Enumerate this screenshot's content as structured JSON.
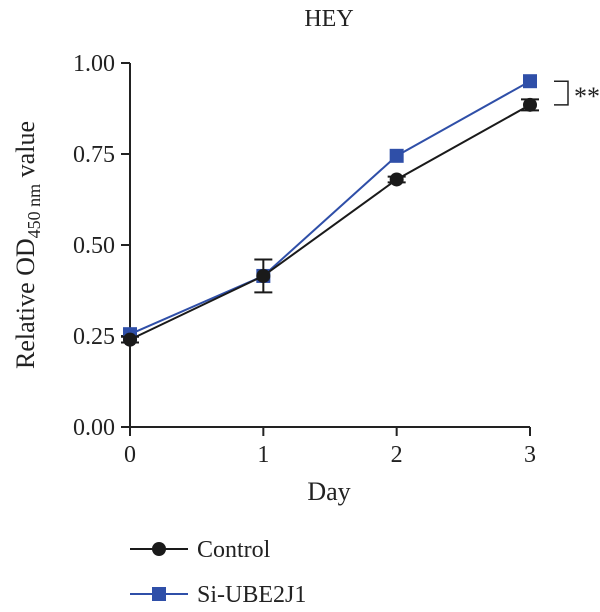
{
  "chart_data": {
    "type": "line",
    "title": "HEY",
    "xlabel": "Day",
    "ylabel": {
      "main": "Relative OD",
      "subscript": "450 nm",
      "suffix": " value"
    },
    "x": [
      0,
      1,
      2,
      3
    ],
    "x_ticks": [
      "0",
      "1",
      "2",
      "3"
    ],
    "y_ticks": [
      "0.00",
      "0.25",
      "0.50",
      "0.75",
      "1.00"
    ],
    "xlim": [
      0,
      3
    ],
    "ylim": [
      0,
      1
    ],
    "grid": false,
    "legend_position": "bottom-left",
    "series": [
      {
        "name": "Control",
        "values": [
          0.24,
          0.415,
          0.68,
          0.885
        ],
        "error": [
          0.008,
          0.045,
          0.008,
          0.015
        ],
        "marker": "circle",
        "color": "#1a1a1a"
      },
      {
        "name": "Si-UBE2J1",
        "values": [
          0.255,
          0.415,
          0.745,
          0.95
        ],
        "error": [
          0,
          0,
          0,
          0
        ],
        "marker": "square",
        "color": "#2f4fa8"
      }
    ],
    "annotations": [
      {
        "text": "**",
        "x": 3,
        "between_series": [
          "Control",
          "Si-UBE2J1"
        ]
      }
    ]
  }
}
